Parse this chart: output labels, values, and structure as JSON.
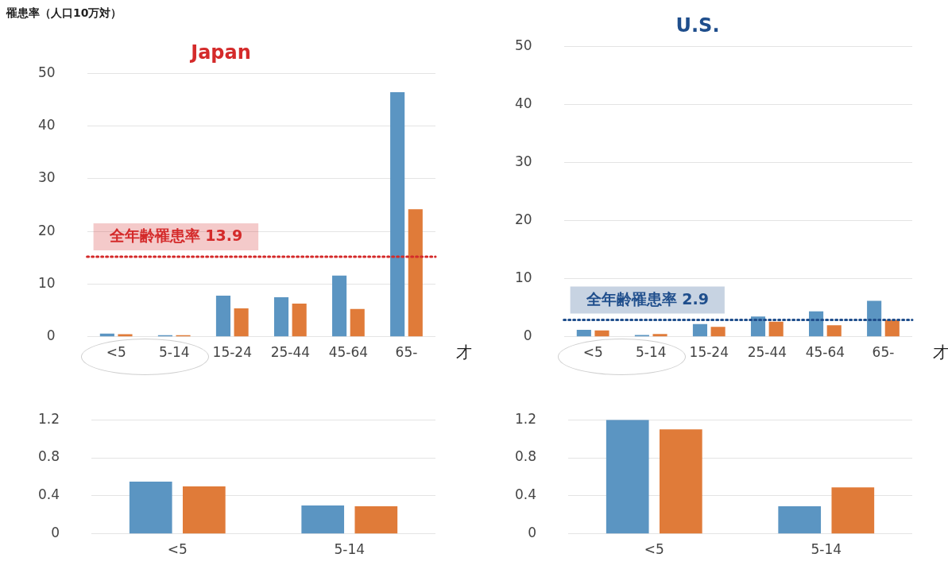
{
  "chart_data": [
    {
      "type": "bar",
      "title": "Japan",
      "ylabel": "罹患率（人口10万対）",
      "categories": [
        "<5",
        "5-14",
        "15-24",
        "25-44",
        "45-64",
        "65-"
      ],
      "series": [
        {
          "color": "#5b95c2",
          "values": [
            0.6,
            0.3,
            7.8,
            7.5,
            11.6,
            46.4
          ]
        },
        {
          "color": "#e07b39",
          "values": [
            0.5,
            0.3,
            5.4,
            6.3,
            5.3,
            24.2
          ]
        }
      ],
      "ylim": [
        0,
        50
      ],
      "yticks": [
        0,
        10,
        20,
        30,
        40,
        50
      ],
      "grid": "y",
      "ref_lines": [
        {
          "axis": "y",
          "value": 15.2,
          "label": "全年齢罹患率 13.9",
          "color": "#d42a2a",
          "line_style": "dotted"
        }
      ],
      "annotations": [
        "才"
      ]
    },
    {
      "type": "bar",
      "title": "U.S.",
      "categories": [
        "<5",
        "5-14",
        "15-24",
        "25-44",
        "45-64",
        "65-"
      ],
      "series": [
        {
          "color": "#5b95c2",
          "values": [
            1.2,
            0.3,
            2.2,
            3.5,
            4.4,
            6.2
          ]
        },
        {
          "color": "#e07b39",
          "values": [
            1.1,
            0.5,
            1.7,
            2.6,
            2.0,
            2.9
          ]
        }
      ],
      "ylim": [
        0,
        50
      ],
      "yticks": [
        0,
        10,
        20,
        30,
        40,
        50
      ],
      "grid": "y",
      "ref_lines": [
        {
          "axis": "y",
          "value": 2.9,
          "label": "全年齢罹患率 2.9",
          "color": "#1f4e8c",
          "line_style": "dotted"
        }
      ],
      "annotations": [
        "才"
      ]
    },
    {
      "type": "bar",
      "categories": [
        "<5",
        "5-14"
      ],
      "series": [
        {
          "color": "#5b95c2",
          "values": [
            0.55,
            0.3
          ]
        },
        {
          "color": "#e07b39",
          "values": [
            0.5,
            0.29
          ]
        }
      ],
      "ylim": [
        0,
        1.2
      ],
      "yticks": [
        0,
        0.4,
        0.8,
        1.2
      ],
      "grid": "y"
    },
    {
      "type": "bar",
      "categories": [
        "<5",
        "5-14"
      ],
      "series": [
        {
          "color": "#5b95c2",
          "values": [
            1.2,
            0.29
          ]
        },
        {
          "color": "#e07b39",
          "values": [
            1.1,
            0.49
          ]
        }
      ],
      "ylim": [
        0,
        1.2
      ],
      "yticks": [
        0,
        0.4,
        0.8,
        1.2
      ],
      "grid": "y"
    }
  ]
}
